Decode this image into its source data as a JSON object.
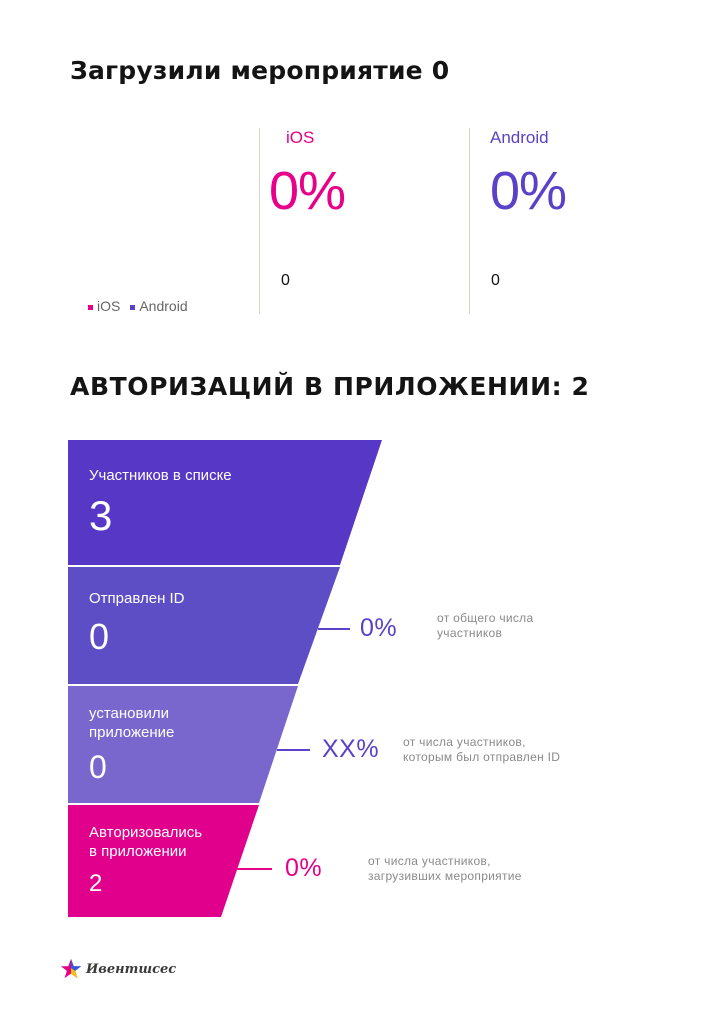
{
  "downloads": {
    "title": "Загрузили мероприятие 0",
    "legend": [
      {
        "label": "iOS",
        "color": "#e6008a"
      },
      {
        "label": "Android",
        "color": "#5b41c8"
      }
    ],
    "platforms": [
      {
        "name": "iOS",
        "percent": "0%",
        "count": "0",
        "color": "#e6008a"
      },
      {
        "name": "Android",
        "percent": "0%",
        "count": "0",
        "color": "#5b41c8"
      }
    ]
  },
  "auth": {
    "title": "АВТОРИЗАЦИЙ В ПРИЛОЖЕНИИ: 2",
    "funnel": [
      {
        "label": "Участников в списке",
        "value": "3",
        "color": "#5637c6"
      },
      {
        "label": "Отправлен ID",
        "value": "0",
        "color": "#5e4ec6"
      },
      {
        "label": "установили\nприложение",
        "value": "0",
        "color": "#7a67ce"
      },
      {
        "label": "Авторизовались\nв приложении",
        "value": "2",
        "color": "#e0008c"
      }
    ],
    "stats": [
      {
        "percent": "0%",
        "note": "от общего числа\nучастников",
        "color": "#5b41c8"
      },
      {
        "percent": "XX%",
        "note": "от числа участников,\nкоторым был отправлен ID",
        "color": "#5b41c8"
      },
      {
        "percent": "0%",
        "note": "от числа участников,\nзагрузивших мероприятие",
        "color": "#e6008a"
      }
    ]
  },
  "logo": {
    "text": "Ивентшсес",
    "star_colors": [
      "#e6008a",
      "#2b5fd9",
      "#f2c200"
    ]
  }
}
